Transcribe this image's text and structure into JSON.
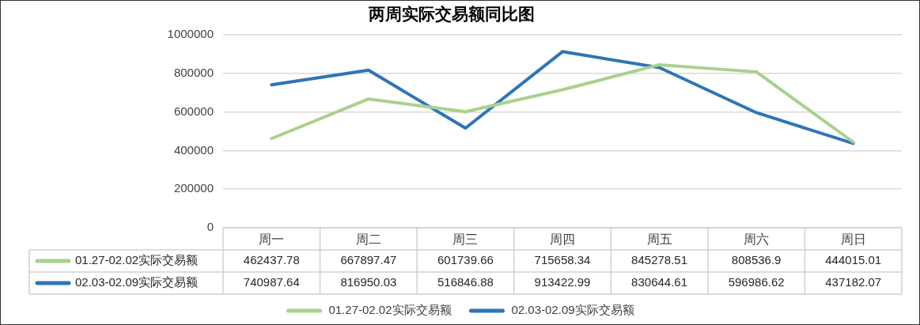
{
  "chart_data": {
    "type": "line",
    "title": "两周实际交易额同比图",
    "categories": [
      "周一",
      "周二",
      "周三",
      "周四",
      "周五",
      "周六",
      "周日"
    ],
    "series": [
      {
        "name": "01.27-02.02实际交易额",
        "color": "#a9d18e",
        "values": [
          462437.78,
          667897.47,
          601739.66,
          715658.34,
          845278.51,
          808536.9,
          444015.01
        ]
      },
      {
        "name": "02.03-02.09实际交易额",
        "color": "#2e75b6",
        "values": [
          740987.64,
          816950.03,
          516846.88,
          913422.99,
          830644.61,
          596986.62,
          437182.07
        ]
      }
    ],
    "ylim": [
      0,
      1000000
    ],
    "yticks": [
      0,
      200000,
      400000,
      600000,
      800000,
      1000000
    ],
    "grid": "y",
    "legend": "bottom",
    "data_labels": true,
    "marker": "none",
    "line_style": "solid"
  }
}
